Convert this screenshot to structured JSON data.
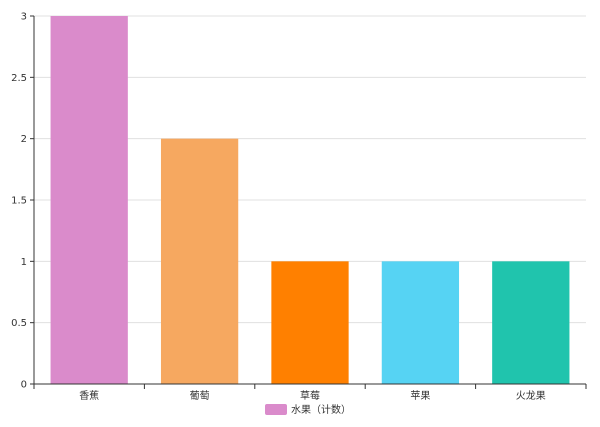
{
  "chart_data": {
    "type": "bar",
    "categories": [
      "香蕉",
      "葡萄",
      "草莓",
      "苹果",
      "火龙果"
    ],
    "series": [
      {
        "name": "水果（计数）",
        "values": [
          3,
          2,
          1,
          1,
          1
        ],
        "colors": [
          "#da8bcb",
          "#f6a860",
          "#ff8000",
          "#56d3f3",
          "#20c4ad"
        ]
      }
    ],
    "yticks": [
      "0",
      "0.5",
      "1",
      "1.5",
      "2",
      "2.5",
      "3"
    ],
    "ylim": [
      0,
      3
    ],
    "grid": true,
    "legend_position": "bottom",
    "legend_color": "#da8bcb"
  }
}
